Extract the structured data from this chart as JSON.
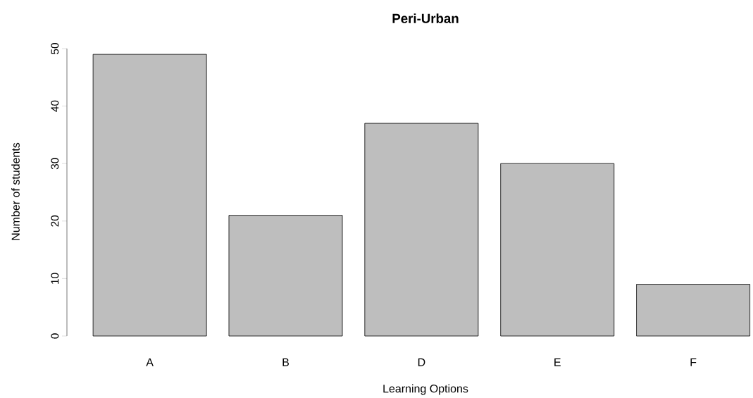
{
  "chart_data": {
    "type": "bar",
    "title": "Peri-Urban",
    "xlabel": "Learning Options",
    "ylabel": "Number of students",
    "categories": [
      "A",
      "B",
      "D",
      "E",
      "F"
    ],
    "values": [
      49,
      21,
      37,
      30,
      9
    ],
    "color": "#bebebe",
    "ylim": [
      0,
      50
    ],
    "yticks": [
      0,
      10,
      20,
      30,
      40,
      50
    ]
  }
}
